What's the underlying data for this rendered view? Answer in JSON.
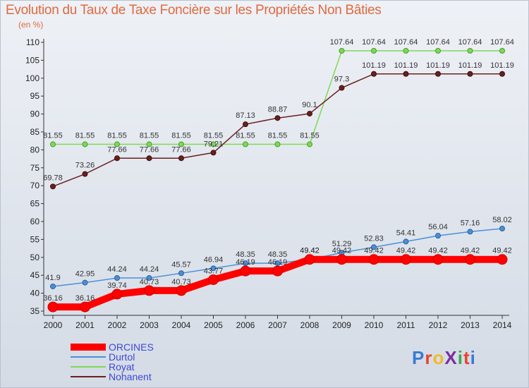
{
  "header": {
    "title": "Evolution du Taux de Taxe Foncière sur les Propriétés Non Bâties",
    "unit": "(en %)"
  },
  "logo": {
    "text": "ProXiti",
    "letter_colors": [
      "#3a7bd5",
      "#e8432e",
      "#f1b92c",
      "#7a2ea0",
      "#3aa84a",
      "#e8432e",
      "#3a7bd5"
    ]
  },
  "chart_data": {
    "type": "line",
    "title": "Evolution du Taux de Taxe Foncière sur les Propriétés Non Bâties",
    "ylabel": "(en %)",
    "xlabel": "",
    "x": [
      "2000",
      "2001",
      "2002",
      "2003",
      "2004",
      "2005",
      "2006",
      "2007",
      "2008",
      "2009",
      "2010",
      "2011",
      "2012",
      "2013",
      "2014"
    ],
    "ylim": [
      35,
      110
    ],
    "yticks": [
      35,
      40,
      45,
      50,
      55,
      60,
      65,
      70,
      75,
      80,
      85,
      90,
      95,
      100,
      105,
      110
    ],
    "grid": false,
    "legend_position": "bottom-left",
    "series": [
      {
        "name": "ORCINES",
        "color": "#ff0000",
        "values": [
          36.16,
          36.16,
          39.74,
          40.73,
          40.73,
          43.77,
          46.19,
          46.19,
          49.42,
          49.42,
          49.42,
          49.42,
          49.42,
          49.42,
          49.42
        ],
        "labels": [
          "36.16",
          "36.16",
          "39.74",
          "40.73",
          "40.73",
          "43.77",
          "46.19",
          "46.19",
          "49.42",
          "49.42",
          "49.42",
          "49.42",
          "49.42",
          "49.42",
          "49.42"
        ]
      },
      {
        "name": "Durtol",
        "color": "#4a90d9",
        "values": [
          41.9,
          42.95,
          44.24,
          44.24,
          45.57,
          46.94,
          48.35,
          48.35,
          49.42,
          51.29,
          52.83,
          54.41,
          56.04,
          57.16,
          58.02
        ],
        "labels": [
          "41.9",
          "42.95",
          "44.24",
          "44.24",
          "45.57",
          "46.94",
          "48.35",
          "48.35",
          "49.42",
          "51.29",
          "52.83",
          "54.41",
          "56.04",
          "57.16",
          "58.02"
        ]
      },
      {
        "name": "Royat",
        "color": "#7ed957",
        "values": [
          81.55,
          81.55,
          81.55,
          81.55,
          81.55,
          81.55,
          81.55,
          81.55,
          81.55,
          107.64,
          107.64,
          107.64,
          107.64,
          107.64,
          107.64
        ],
        "labels": [
          "81.55",
          "81.55",
          "81.55",
          "81.55",
          "81.55",
          "81.55",
          "81.55",
          "81.55",
          "81.55",
          "107.64",
          "107.64",
          "107.64",
          "107.64",
          "107.64",
          "107.64"
        ]
      },
      {
        "name": "Nohanent",
        "color": "#6b1f1f",
        "values": [
          69.78,
          73.26,
          77.66,
          77.66,
          77.66,
          79.21,
          87.13,
          88.87,
          90.1,
          97.3,
          101.19,
          101.19,
          101.19,
          101.19,
          101.19
        ],
        "labels": [
          "69.78",
          "73.26",
          "77.66",
          "77.66",
          "77.66",
          "79.21",
          "87.13",
          "88.87",
          "90.1",
          "97.3",
          "101.19",
          "101.19",
          "101.19",
          "101.19",
          "101.19"
        ]
      }
    ]
  }
}
